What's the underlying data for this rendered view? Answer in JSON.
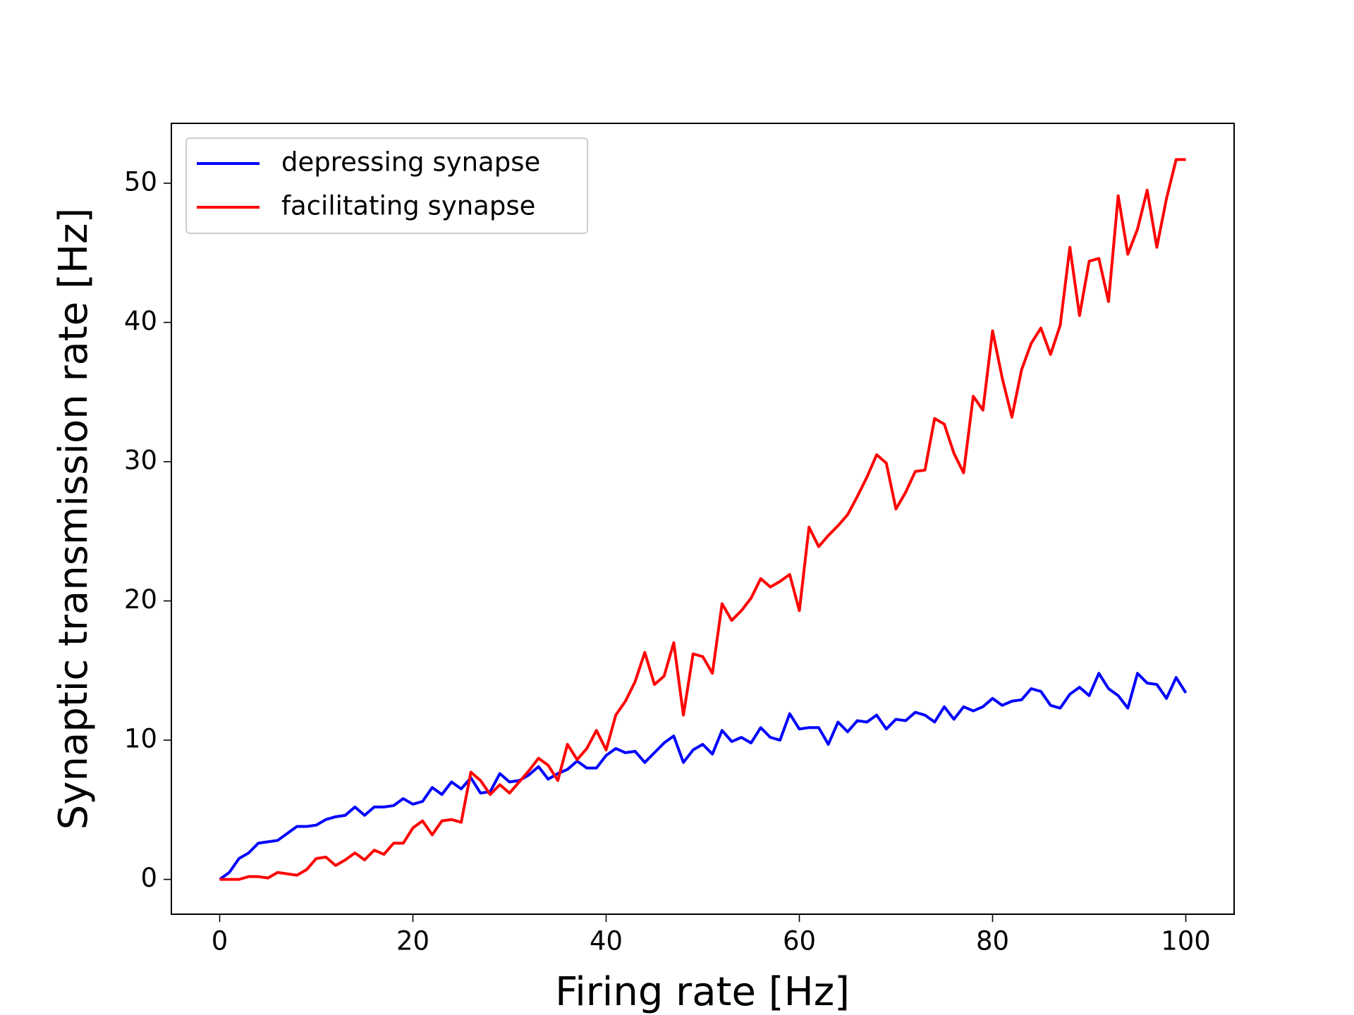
{
  "chart_data": {
    "type": "line",
    "xlabel": "Firing rate [Hz]",
    "ylabel": "Synaptic transmission rate [Hz]",
    "x": [
      0,
      1,
      2,
      3,
      4,
      5,
      6,
      7,
      8,
      9,
      10,
      11,
      12,
      13,
      14,
      15,
      16,
      17,
      18,
      19,
      20,
      21,
      22,
      23,
      24,
      25,
      26,
      27,
      28,
      29,
      30,
      31,
      32,
      33,
      34,
      35,
      36,
      37,
      38,
      39,
      40,
      41,
      42,
      43,
      44,
      45,
      46,
      47,
      48,
      49,
      50,
      51,
      52,
      53,
      54,
      55,
      56,
      57,
      58,
      59,
      60,
      61,
      62,
      63,
      64,
      65,
      66,
      67,
      68,
      69,
      70,
      71,
      72,
      73,
      74,
      75,
      76,
      77,
      78,
      79,
      80,
      81,
      82,
      83,
      84,
      85,
      86,
      87,
      88,
      89,
      90,
      91,
      92,
      93,
      94,
      95,
      96,
      97,
      98,
      99,
      100
    ],
    "series": [
      {
        "name": "depressing synapse",
        "color": "#0000ff",
        "values": [
          0,
          0.5,
          1.5,
          1.9,
          2.6,
          2.7,
          2.8,
          3.3,
          3.8,
          3.8,
          3.9,
          4.3,
          4.5,
          4.6,
          5.2,
          4.6,
          5.2,
          5.2,
          5.3,
          5.8,
          5.4,
          5.6,
          6.6,
          6.1,
          7.0,
          6.5,
          7.3,
          6.2,
          6.3,
          7.6,
          7.0,
          7.1,
          7.5,
          8.1,
          7.2,
          7.6,
          7.9,
          8.5,
          8.0,
          8.0,
          8.9,
          9.4,
          9.1,
          9.2,
          8.4,
          9.1,
          9.8,
          10.3,
          8.4,
          9.3,
          9.7,
          9.0,
          10.7,
          9.9,
          10.2,
          9.8,
          10.9,
          10.2,
          10.0,
          11.9,
          10.8,
          10.9,
          10.9,
          9.7,
          11.3,
          10.6,
          11.4,
          11.3,
          11.8,
          10.8,
          11.5,
          11.4,
          12.0,
          11.8,
          11.3,
          12.4,
          11.5,
          12.4,
          12.1,
          12.4,
          13.0,
          12.5,
          12.8,
          12.9,
          13.7,
          13.5,
          12.5,
          12.3,
          13.3,
          13.8,
          13.2,
          14.8,
          13.7,
          13.2,
          12.3,
          14.8,
          14.1,
          14.0,
          13.0,
          14.5,
          13.4
        ]
      },
      {
        "name": "facilitating synapse",
        "color": "#ff0000",
        "values": [
          0,
          0,
          0,
          0.2,
          0.2,
          0.1,
          0.5,
          0.4,
          0.3,
          0.7,
          1.5,
          1.6,
          1.0,
          1.4,
          1.9,
          1.4,
          2.1,
          1.8,
          2.6,
          2.6,
          3.7,
          4.2,
          3.2,
          4.2,
          4.3,
          4.1,
          7.7,
          7.1,
          6.1,
          6.8,
          6.2,
          7.0,
          7.8,
          8.7,
          8.2,
          7.1,
          9.7,
          8.6,
          9.4,
          10.7,
          9.3,
          11.8,
          12.8,
          14.2,
          16.3,
          14.0,
          14.6,
          17.0,
          11.8,
          16.2,
          16.0,
          14.8,
          19.8,
          18.6,
          19.3,
          20.2,
          21.6,
          21.0,
          21.4,
          21.9,
          19.3,
          25.3,
          23.9,
          24.7,
          25.4,
          26.2,
          27.5,
          28.9,
          30.5,
          29.9,
          26.6,
          27.8,
          29.3,
          29.4,
          33.1,
          32.7,
          30.6,
          29.2,
          34.7,
          33.7,
          39.4,
          36.0,
          33.2,
          36.6,
          38.5,
          39.6,
          37.7,
          39.8,
          45.4,
          40.5,
          44.4,
          44.6,
          41.5,
          49.1,
          44.9,
          46.7,
          49.5,
          45.4,
          48.9,
          51.7,
          51.7
        ]
      }
    ],
    "xlim": [
      -5,
      105
    ],
    "ylim": [
      -2.5,
      54.3
    ],
    "xticks": [
      0,
      20,
      40,
      60,
      80,
      100
    ],
    "yticks": [
      0,
      10,
      20,
      30,
      40,
      50
    ],
    "legend": "upper left",
    "grid": false
  }
}
